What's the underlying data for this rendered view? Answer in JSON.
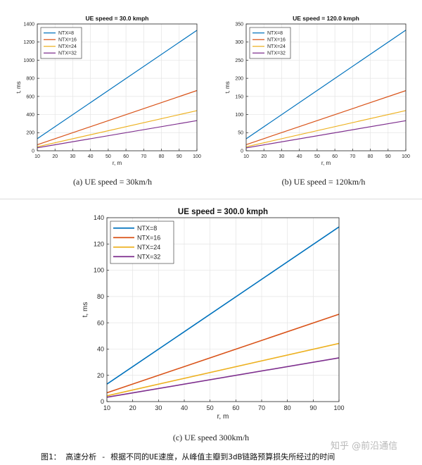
{
  "figure_caption": "图1： 高速分析 - 根据不同的UE速度，从峰值主瓣到3dB链路预算损失所经过的时间",
  "watermark": "知乎 @前沿通信",
  "chart_data": [
    {
      "type": "line",
      "title": "UE speed = 30.0 kmph",
      "xlabel": "r, m",
      "ylabel": "t, ms",
      "xlim": [
        10,
        100
      ],
      "ylim": [
        0,
        1400
      ],
      "xticks": [
        "10",
        "20",
        "30",
        "40",
        "50",
        "60",
        "70",
        "80",
        "90",
        "100"
      ],
      "yticks": [
        "0",
        "200",
        "400",
        "600",
        "800",
        "1000",
        "1200",
        "1400"
      ],
      "grid": true,
      "legend": "top-left",
      "x": [
        10,
        100
      ],
      "series": [
        {
          "name": "NTX=8",
          "color": "#0072BD",
          "values": [
            133,
            1330
          ]
        },
        {
          "name": "NTX=16",
          "color": "#D95319",
          "values": [
            67,
            665
          ]
        },
        {
          "name": "NTX=24",
          "color": "#EDB120",
          "values": [
            44,
            443
          ]
        },
        {
          "name": "NTX=32",
          "color": "#7E2F8E",
          "values": [
            33,
            333
          ]
        }
      ],
      "caption": "(a) UE speed = 30km/h"
    },
    {
      "type": "line",
      "title": "UE speed = 120.0 kmph",
      "xlabel": "r, m",
      "ylabel": "t, ms",
      "xlim": [
        10,
        100
      ],
      "ylim": [
        0,
        350
      ],
      "xticks": [
        "10",
        "20",
        "30",
        "40",
        "50",
        "60",
        "70",
        "80",
        "90",
        "100"
      ],
      "yticks": [
        "0",
        "50",
        "100",
        "150",
        "200",
        "250",
        "300",
        "350"
      ],
      "grid": true,
      "legend": "top-left",
      "x": [
        10,
        100
      ],
      "series": [
        {
          "name": "NTX=8",
          "color": "#0072BD",
          "values": [
            33,
            333
          ]
        },
        {
          "name": "NTX=16",
          "color": "#D95319",
          "values": [
            17,
            166
          ]
        },
        {
          "name": "NTX=24",
          "color": "#EDB120",
          "values": [
            11,
            111
          ]
        },
        {
          "name": "NTX=32",
          "color": "#7E2F8E",
          "values": [
            8,
            83
          ]
        }
      ],
      "caption": "(b) UE speed = 120km/h"
    },
    {
      "type": "line",
      "title": "UE speed = 300.0 kmph",
      "xlabel": "r, m",
      "ylabel": "t, ms",
      "xlim": [
        10,
        100
      ],
      "ylim": [
        0,
        140
      ],
      "xticks": [
        "10",
        "20",
        "30",
        "40",
        "50",
        "60",
        "70",
        "80",
        "90",
        "100"
      ],
      "yticks": [
        "0",
        "20",
        "40",
        "60",
        "80",
        "100",
        "120",
        "140"
      ],
      "grid": true,
      "legend": "top-left",
      "x": [
        10,
        100
      ],
      "series": [
        {
          "name": "NTX=8",
          "color": "#0072BD",
          "values": [
            13.3,
            133
          ]
        },
        {
          "name": "NTX=16",
          "color": "#D95319",
          "values": [
            6.7,
            66.5
          ]
        },
        {
          "name": "NTX=24",
          "color": "#EDB120",
          "values": [
            4.4,
            44.3
          ]
        },
        {
          "name": "NTX=32",
          "color": "#7E2F8E",
          "values": [
            3.3,
            33.3
          ]
        }
      ],
      "caption": "(c) UE speed 300km/h"
    }
  ]
}
